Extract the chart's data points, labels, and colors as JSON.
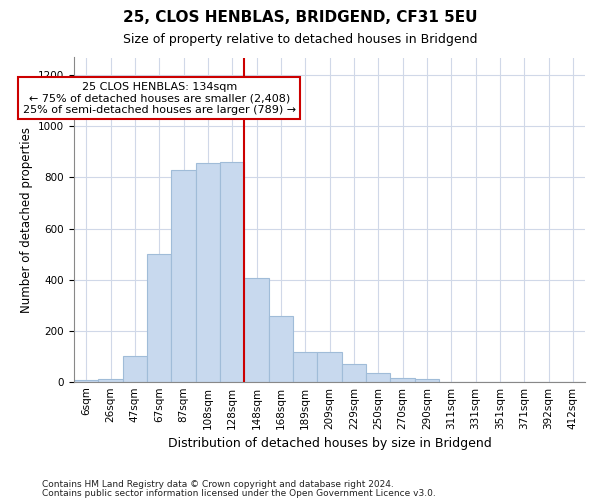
{
  "title1": "25, CLOS HENBLAS, BRIDGEND, CF31 5EU",
  "title2": "Size of property relative to detached houses in Bridgend",
  "xlabel": "Distribution of detached houses by size in Bridgend",
  "ylabel": "Number of detached properties",
  "footnote1": "Contains HM Land Registry data © Crown copyright and database right 2024.",
  "footnote2": "Contains public sector information licensed under the Open Government Licence v3.0.",
  "categories": [
    "6sqm",
    "26sqm",
    "47sqm",
    "67sqm",
    "87sqm",
    "108sqm",
    "128sqm",
    "148sqm",
    "168sqm",
    "189sqm",
    "209sqm",
    "229sqm",
    "250sqm",
    "270sqm",
    "290sqm",
    "311sqm",
    "331sqm",
    "351sqm",
    "371sqm",
    "392sqm",
    "412sqm"
  ],
  "values": [
    8,
    12,
    100,
    500,
    830,
    855,
    860,
    405,
    258,
    115,
    115,
    68,
    35,
    15,
    12,
    0,
    0,
    0,
    0,
    0,
    0
  ],
  "bar_color": "#c8d9ee",
  "bar_edge_color": "#a0bcd8",
  "highlight_color": "#cc0000",
  "vline_index": 6,
  "annotation_text": "25 CLOS HENBLAS: 134sqm\n← 75% of detached houses are smaller (2,408)\n25% of semi-detached houses are larger (789) →",
  "annotation_box_facecolor": "#ffffff",
  "annotation_box_edgecolor": "#cc0000",
  "ylim": [
    0,
    1270
  ],
  "yticks": [
    0,
    200,
    400,
    600,
    800,
    1000,
    1200
  ],
  "background_color": "#ffffff",
  "grid_color": "#d0d8e8",
  "title1_fontsize": 11,
  "title2_fontsize": 9,
  "ylabel_fontsize": 8.5,
  "xlabel_fontsize": 9,
  "tick_fontsize": 7.5,
  "ann_fontsize": 8,
  "footnote_fontsize": 6.5
}
